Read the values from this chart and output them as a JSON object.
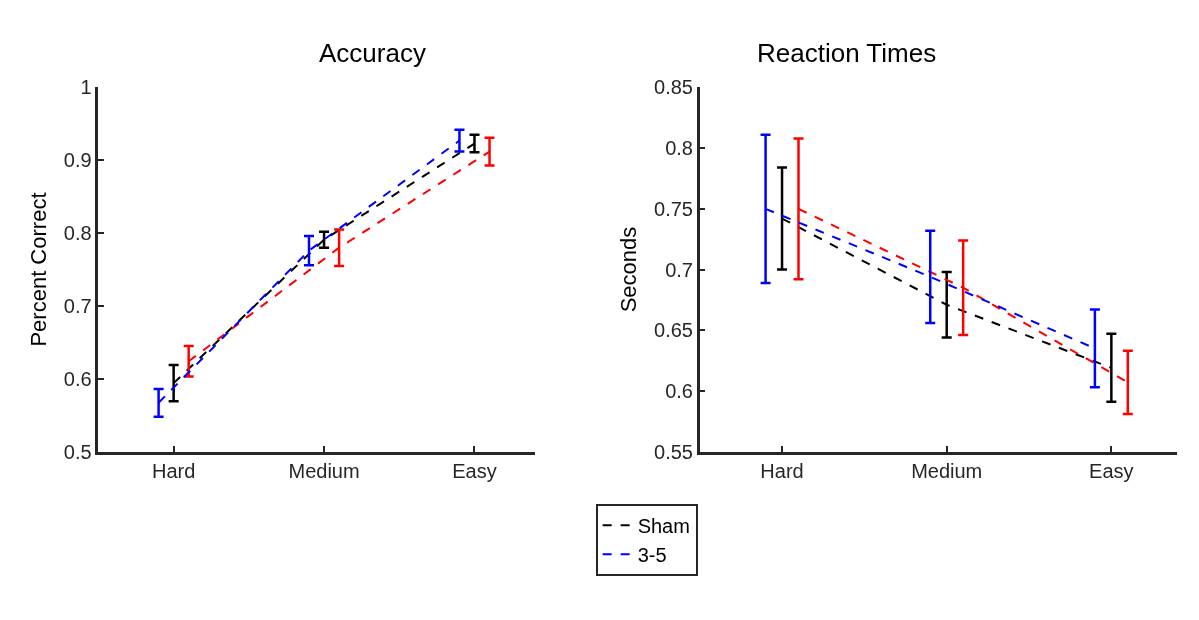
{
  "chart_data": [
    {
      "type": "line",
      "title": "Accuracy",
      "ylabel": "Percent Correct",
      "categories": [
        "Hard",
        "Medium",
        "Easy"
      ],
      "ylim": [
        0.5,
        1
      ],
      "yticks": [
        0.5,
        0.6,
        0.7,
        0.8,
        0.9,
        1
      ],
      "line_style": "dashed",
      "legend": "bottom",
      "series": [
        {
          "name": "Sham",
          "color": "#000000",
          "values": [
            0.594,
            0.791,
            0.923
          ],
          "errors": [
            0.025,
            0.011,
            0.012
          ]
        },
        {
          "color": "#ff0000",
          "values": [
            0.624,
            0.78,
            0.912
          ],
          "errors": [
            0.021,
            0.025,
            0.019
          ]
        },
        {
          "name": "3-5",
          "color": "#0000ff",
          "values": [
            0.567,
            0.776,
            0.927
          ],
          "errors": [
            0.019,
            0.02,
            0.015
          ]
        }
      ]
    },
    {
      "type": "line",
      "title": "Reaction Times",
      "ylabel": "Seconds",
      "categories": [
        "Hard",
        "Medium",
        "Easy"
      ],
      "ylim": [
        0.55,
        0.85
      ],
      "yticks": [
        0.55,
        0.6,
        0.65,
        0.7,
        0.75,
        0.8,
        0.85
      ],
      "line_style": "dashed",
      "series": [
        {
          "color": "#000000",
          "values": [
            0.742,
            0.671,
            0.619
          ],
          "errors": [
            0.042,
            0.027,
            0.028
          ]
        },
        {
          "color": "#ff0000",
          "values": [
            0.75,
            0.685,
            0.607
          ],
          "errors": [
            0.058,
            0.039,
            0.026
          ]
        },
        {
          "color": "#0000ff",
          "values": [
            0.75,
            0.694,
            0.635
          ],
          "errors": [
            0.061,
            0.038,
            0.032
          ]
        }
      ]
    }
  ]
}
